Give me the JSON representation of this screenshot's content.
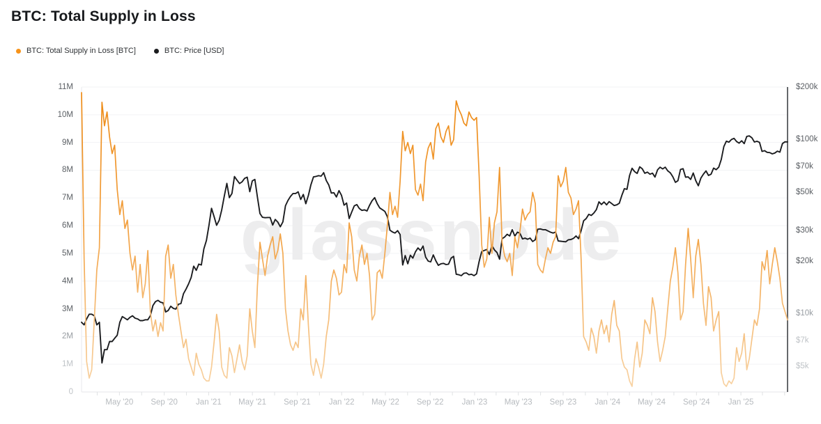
{
  "title": "BTC: Total Supply in Loss",
  "watermark": "glassnode",
  "legend": [
    {
      "label": "BTC: Total Supply in Loss [BTC]",
      "color": "#F7931A"
    },
    {
      "label": "BTC: Price [USD]",
      "color": "#1B1C1F"
    }
  ],
  "colors": {
    "supply_orange": "#F7931A",
    "supply_gradient_top": "#ED8A14",
    "supply_gradient_mid": "#F2A040",
    "supply_gradient_bottom": "#F8D4A6",
    "price_black": "#1B1C1F",
    "grid": "#F2F3F5",
    "bottom_grid": "#E4E6E8",
    "left_axis_line": "#E8EAEC",
    "right_axis_line": "#3F4246",
    "tick_mark": "#E0E2E4",
    "watermark": "#EDEDEE",
    "title_text": "#17191C",
    "x_label_text": "#B7BBBF"
  },
  "chart_data": {
    "type": "line",
    "title": "BTC: Total Supply in Loss",
    "x": {
      "start": "2020-01-18",
      "end": "2025-05-09",
      "step": "weekly",
      "points": 278
    },
    "x_ticks": [
      {
        "label": "May '20",
        "date": "2020-05-01"
      },
      {
        "label": "Sep '20",
        "date": "2020-09-01"
      },
      {
        "label": "Jan '21",
        "date": "2021-01-01"
      },
      {
        "label": "May '21",
        "date": "2021-05-01"
      },
      {
        "label": "Sep '21",
        "date": "2021-09-01"
      },
      {
        "label": "Jan '22",
        "date": "2022-01-01"
      },
      {
        "label": "May '22",
        "date": "2022-05-01"
      },
      {
        "label": "Sep '22",
        "date": "2022-09-01"
      },
      {
        "label": "Jan '23",
        "date": "2023-01-01"
      },
      {
        "label": "May '23",
        "date": "2023-05-01"
      },
      {
        "label": "Sep '23",
        "date": "2023-09-01"
      },
      {
        "label": "Jan '24",
        "date": "2024-01-01"
      },
      {
        "label": "May '24",
        "date": "2024-05-01"
      },
      {
        "label": "Sep '24",
        "date": "2024-09-01"
      },
      {
        "label": "Jan '25",
        "date": "2025-01-01"
      }
    ],
    "left_axis": {
      "unit": "BTC",
      "min": 0,
      "max_millions": 11,
      "ticks": [
        {
          "value": 0,
          "label": "0",
          "shade": "light"
        },
        {
          "value": 1,
          "label": "1M",
          "shade": "light"
        },
        {
          "value": 2,
          "label": "2M",
          "shade": "mid"
        },
        {
          "value": 3,
          "label": "3M",
          "shade": "dark"
        },
        {
          "value": 4,
          "label": "4M",
          "shade": "dark"
        },
        {
          "value": 5,
          "label": "5M",
          "shade": "dark"
        },
        {
          "value": 6,
          "label": "6M",
          "shade": "dark"
        },
        {
          "value": 7,
          "label": "7M",
          "shade": "dark"
        },
        {
          "value": 8,
          "label": "8M",
          "shade": "dark"
        },
        {
          "value": 9,
          "label": "9M",
          "shade": "dark"
        },
        {
          "value": 10,
          "label": "10M",
          "shade": "dark"
        },
        {
          "value": 11,
          "label": "11M",
          "shade": "dark"
        }
      ]
    },
    "right_axis": {
      "unit": "USD",
      "scale": "log",
      "min": 3540,
      "max": 200000,
      "ticks": [
        {
          "value": 5000,
          "label": "$5k",
          "shade": "light"
        },
        {
          "value": 7000,
          "label": "$7k",
          "shade": "light"
        },
        {
          "value": 10000,
          "label": "$10k",
          "shade": "mid"
        },
        {
          "value": 20000,
          "label": "$20k",
          "shade": "dark"
        },
        {
          "value": 30000,
          "label": "$30k",
          "shade": "dark"
        },
        {
          "value": 50000,
          "label": "$50k",
          "shade": "dark"
        },
        {
          "value": 70000,
          "label": "$70k",
          "shade": "dark"
        },
        {
          "value": 100000,
          "label": "$100k",
          "shade": "dark"
        },
        {
          "value": 200000,
          "label": "$200k",
          "shade": "dark"
        }
      ]
    },
    "series": [
      {
        "name": "BTC: Total Supply in Loss [BTC]",
        "axis": "left",
        "values_unit": "million BTC",
        "values": [
          10.8,
          4.8,
          1.1,
          0.5,
          0.8,
          2.6,
          4.4,
          5.2,
          10.45,
          9.6,
          10.1,
          9.2,
          8.6,
          8.9,
          7.3,
          6.4,
          6.9,
          5.9,
          6.2,
          5.0,
          4.4,
          4.9,
          3.6,
          4.6,
          3.4,
          3.9,
          5.1,
          2.9,
          2.2,
          2.6,
          2.0,
          2.5,
          2.2,
          4.9,
          5.3,
          4.1,
          4.6,
          3.5,
          2.8,
          2.2,
          1.6,
          1.9,
          1.2,
          0.9,
          0.6,
          1.4,
          1.0,
          0.8,
          0.5,
          0.4,
          0.4,
          0.9,
          1.8,
          2.8,
          2.2,
          0.9,
          0.6,
          0.5,
          1.6,
          1.3,
          0.7,
          1.2,
          1.7,
          1.1,
          0.8,
          1.3,
          3.0,
          2.2,
          1.6,
          3.8,
          5.4,
          4.8,
          4.2,
          4.9,
          5.3,
          5.6,
          4.8,
          5.1,
          5.7,
          5.0,
          3.0,
          2.2,
          1.7,
          1.5,
          1.8,
          1.6,
          3.0,
          2.6,
          4.2,
          2.4,
          1.0,
          0.6,
          1.2,
          0.9,
          0.5,
          1.0,
          2.0,
          2.6,
          4.0,
          4.4,
          4.1,
          3.5,
          3.6,
          4.6,
          4.3,
          6.1,
          5.6,
          4.4,
          4.0,
          4.9,
          5.3,
          4.6,
          5.0,
          4.2,
          2.6,
          2.8,
          4.3,
          4.4,
          4.1,
          5.0,
          6.0,
          7.2,
          6.4,
          6.7,
          6.3,
          7.6,
          9.4,
          8.7,
          9.0,
          8.6,
          8.9,
          7.3,
          7.1,
          7.5,
          6.9,
          8.3,
          8.8,
          9.0,
          8.4,
          9.5,
          9.7,
          9.2,
          9.0,
          9.4,
          9.6,
          8.9,
          9.1,
          10.5,
          10.2,
          10.0,
          9.7,
          9.6,
          10.1,
          9.9,
          9.8,
          9.9,
          7.8,
          5.3,
          4.5,
          4.8,
          6.3,
          5.0,
          6.1,
          6.5,
          8.1,
          5.4,
          4.9,
          4.7,
          5.0,
          4.2,
          5.6,
          5.2,
          5.8,
          6.6,
          6.2,
          6.4,
          6.5,
          7.2,
          6.8,
          4.6,
          4.4,
          4.3,
          4.8,
          5.2,
          5.0,
          5.4,
          5.6,
          7.8,
          7.4,
          7.6,
          8.1,
          7.2,
          7.0,
          6.4,
          6.6,
          6.9,
          4.8,
          2.0,
          1.8,
          1.5,
          2.3,
          2.0,
          1.4,
          2.2,
          2.6,
          2.1,
          2.4,
          1.8,
          2.8,
          3.3,
          2.4,
          2.2,
          1.2,
          0.9,
          0.8,
          0.4,
          0.2,
          1.2,
          1.8,
          0.9,
          1.4,
          2.6,
          2.4,
          2.1,
          3.4,
          2.9,
          1.8,
          1.1,
          1.5,
          2.0,
          3.0,
          4.0,
          4.5,
          5.2,
          4.3,
          2.6,
          2.9,
          4.6,
          5.9,
          4.8,
          3.4,
          4.9,
          5.5,
          4.6,
          3.2,
          2.4,
          3.8,
          3.4,
          2.2,
          2.6,
          2.9,
          0.7,
          0.3,
          0.2,
          0.4,
          0.3,
          0.5,
          1.6,
          1.1,
          1.4,
          2.1,
          0.8,
          1.2,
          1.9,
          2.6,
          2.4,
          3.0,
          4.7,
          4.4,
          5.1,
          3.9,
          4.6,
          5.2,
          4.7,
          4.1,
          3.2,
          2.9,
          2.6
        ]
      },
      {
        "name": "BTC: Price [USD]",
        "axis": "right",
        "values_unit": "USD",
        "values": [
          8900,
          8600,
          9300,
          9900,
          9900,
          9700,
          8600,
          8900,
          5200,
          6200,
          6200,
          6900,
          6900,
          7200,
          7500,
          8900,
          9600,
          9400,
          9200,
          9500,
          9700,
          9400,
          9300,
          9100,
          9100,
          9200,
          9200,
          9700,
          11100,
          11700,
          11900,
          11600,
          11500,
          10200,
          10400,
          11000,
          10700,
          10600,
          11300,
          11400,
          13000,
          13800,
          14800,
          16100,
          18700,
          17700,
          19200,
          19000,
          23500,
          26300,
          32200,
          40200,
          36000,
          32100,
          34300,
          39300,
          47200,
          55900,
          46300,
          48900,
          61200,
          58300,
          55800,
          57100,
          59800,
          60700,
          50100,
          57800,
          58900,
          46800,
          37500,
          35700,
          35500,
          35600,
          35600,
          32200,
          34700,
          33500,
          31500,
          33600,
          41600,
          44600,
          47100,
          48900,
          48900,
          50000,
          45200,
          48300,
          42700,
          47700,
          54900,
          60900,
          61300,
          61900,
          61500,
          64400,
          58100,
          54800,
          49200,
          49400,
          46700,
          50800,
          47700,
          41900,
          43100,
          35100,
          38200,
          41500,
          42200,
          40100,
          39100,
          39400,
          38800,
          41800,
          44500,
          46300,
          42800,
          40400,
          39500,
          38600,
          36000,
          30100,
          29400,
          29000,
          29900,
          28400,
          19000,
          21500,
          19300,
          21600,
          20800,
          22600,
          23800,
          23000,
          24400,
          21100,
          20000,
          19800,
          21700,
          20100,
          18900,
          19300,
          19400,
          19100,
          19200,
          20800,
          21300,
          16800,
          16700,
          16500,
          17000,
          17100,
          16700,
          16800,
          16500,
          16900,
          19900,
          22700,
          23000,
          23300,
          21800,
          24600,
          23200,
          22400,
          20500,
          26900,
          27500,
          28500,
          27900,
          30300,
          27800,
          29300,
          28900,
          26800,
          27100,
          26700,
          27100,
          25900,
          26500,
          30500,
          30600,
          30300,
          30300,
          29800,
          29300,
          29000,
          29400,
          26100,
          26000,
          25900,
          25800,
          26500,
          26600,
          27000,
          27900,
          26900,
          29900,
          34100,
          35100,
          37100,
          36600,
          37800,
          39500,
          43800,
          42300,
          43700,
          42100,
          43900,
          42800,
          41700,
          42100,
          43000,
          47800,
          52100,
          51700,
          62000,
          68300,
          65300,
          63800,
          69600,
          67800,
          63900,
          64900,
          63100,
          64000,
          60800,
          66900,
          69300,
          67700,
          69300,
          66000,
          64300,
          61000,
          56700,
          57900,
          67200,
          67900,
          60700,
          60900,
          58900,
          64100,
          58000,
          54200,
          60000,
          63200,
          65900,
          62100,
          63200,
          68400,
          67000,
          69300,
          76700,
          91000,
          97700,
          96400,
          99900,
          101400,
          97200,
          95200,
          98200,
          94600,
          104100,
          104800,
          102200,
          96600,
          97600,
          96200,
          85300,
          86200,
          84300,
          84000,
          82600,
          83500,
          85600,
          84500,
          94700,
          96900,
          96800
        ]
      }
    ]
  }
}
